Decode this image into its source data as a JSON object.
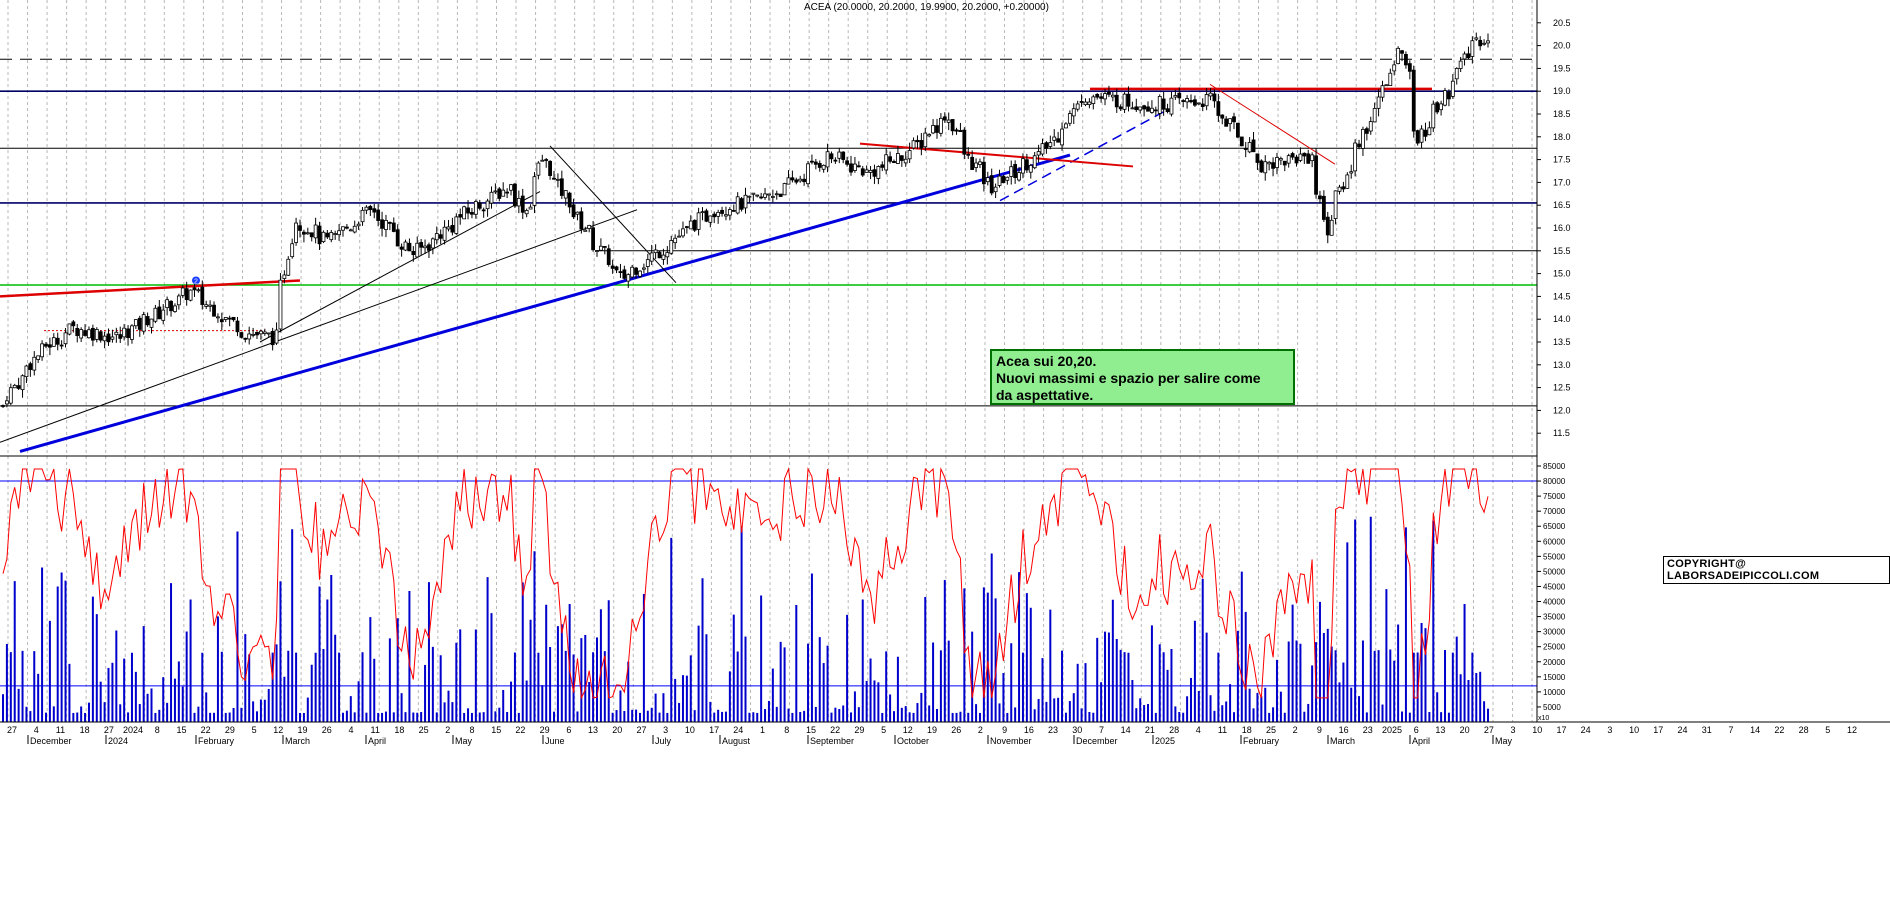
{
  "header": {
    "title": "ACEA (20.0000, 20.2000, 19.9900, 20.2000, +0.20000)"
  },
  "annotation": {
    "line1": "Acea sui 20,20.",
    "line2": "Nuovi massimi e spazio per salire come",
    "line3": "da aspettative."
  },
  "copyright": "COPYRIGHT@ LABORSADEIPICCOLI.COM",
  "colors": {
    "up": "#ffffff",
    "down": "#000000",
    "rsi": "#ff0000",
    "volume": "#0000cc",
    "trend_blue": "#0000dd",
    "support_green": "#00bb00",
    "resistance_red": "#dd0000",
    "annotation_bg": "#90ee90"
  },
  "chart_data": [
    {
      "type": "candlestick",
      "title": "ACEA",
      "ylim": [
        11.0,
        21.0
      ],
      "y_ticks": [
        "11.5",
        "12.0",
        "12.5",
        "13.0",
        "13.5",
        "14.0",
        "14.5",
        "15.0",
        "15.5",
        "16.0",
        "16.5",
        "17.0",
        "17.5",
        "18.0",
        "18.5",
        "19.0",
        "19.5",
        "20.0",
        "20.5"
      ],
      "x_day_ticks": [
        "27",
        "4",
        "11",
        "18",
        "27",
        "2024",
        "8",
        "15",
        "22",
        "29",
        "5",
        "12",
        "19",
        "26",
        "4",
        "11",
        "18",
        "25",
        "2",
        "8",
        "15",
        "22",
        "29",
        "6",
        "13",
        "20",
        "27",
        "3",
        "10",
        "17",
        "24",
        "1",
        "8",
        "15",
        "22",
        "29",
        "5",
        "12",
        "19",
        "26",
        "2",
        "9",
        "16",
        "23",
        "30",
        "7",
        "14",
        "21",
        "28",
        "4",
        "11",
        "18",
        "25",
        "2",
        "9",
        "16",
        "23",
        "2025",
        "6",
        "13",
        "20",
        "27",
        "3",
        "10",
        "17",
        "24",
        "3",
        "10",
        "17",
        "24",
        "31",
        "7",
        "14",
        "22",
        "28",
        "5",
        "12"
      ],
      "x_month_labels": [
        "December",
        "2024",
        "February",
        "March",
        "April",
        "May",
        "June",
        "July",
        "August",
        "September",
        "October",
        "November",
        "December",
        "2025",
        "February",
        "March",
        "April",
        "May"
      ],
      "horizontal_levels": [
        12.1,
        14.75,
        15.5,
        16.55,
        17.75,
        19.0,
        19.7
      ],
      "anchor_points": [
        {
          "date": "2023-11-24",
          "close": 12.1
        },
        {
          "date": "2023-12-08",
          "close": 13.3
        },
        {
          "date": "2023-12-20",
          "close": 13.8
        },
        {
          "date": "2024-01-05",
          "close": 13.6
        },
        {
          "date": "2024-01-31",
          "close": 14.6
        },
        {
          "date": "2024-02-20",
          "close": 13.7
        },
        {
          "date": "2024-03-01",
          "close": 13.6
        },
        {
          "date": "2024-03-08",
          "close": 16.2
        },
        {
          "date": "2024-03-20",
          "close": 15.7
        },
        {
          "date": "2024-04-05",
          "close": 16.4
        },
        {
          "date": "2024-04-20",
          "close": 15.4
        },
        {
          "date": "2024-05-08",
          "close": 16.3
        },
        {
          "date": "2024-05-24",
          "close": 16.9
        },
        {
          "date": "2024-05-30",
          "close": 16.4
        },
        {
          "date": "2024-06-05",
          "close": 17.5
        },
        {
          "date": "2024-06-20",
          "close": 16.0
        },
        {
          "date": "2024-07-03",
          "close": 14.9
        },
        {
          "date": "2024-07-15",
          "close": 15.4
        },
        {
          "date": "2024-08-05",
          "close": 16.4
        },
        {
          "date": "2024-08-20",
          "close": 16.6
        },
        {
          "date": "2024-09-01",
          "close": 16.9
        },
        {
          "date": "2024-09-15",
          "close": 17.6
        },
        {
          "date": "2024-09-30",
          "close": 17.2
        },
        {
          "date": "2024-10-15",
          "close": 17.7
        },
        {
          "date": "2024-10-28",
          "close": 18.5
        },
        {
          "date": "2024-11-05",
          "close": 17.5
        },
        {
          "date": "2024-11-13",
          "close": 16.9
        },
        {
          "date": "2024-12-02",
          "close": 17.7
        },
        {
          "date": "2024-12-16",
          "close": 18.9
        },
        {
          "date": "2025-01-10",
          "close": 18.7
        },
        {
          "date": "2025-01-30",
          "close": 18.8
        },
        {
          "date": "2025-02-18",
          "close": 17.4
        },
        {
          "date": "2025-03-07",
          "close": 17.6
        },
        {
          "date": "2025-03-13",
          "close": 16.0
        },
        {
          "date": "2025-03-24",
          "close": 17.8
        },
        {
          "date": "2025-04-02",
          "close": 19.0
        },
        {
          "date": "2025-04-09",
          "close": 20.0
        },
        {
          "date": "2025-04-15",
          "close": 17.9
        },
        {
          "date": "2025-04-25",
          "close": 19.0
        },
        {
          "date": "2025-05-05",
          "close": 20.1
        },
        {
          "date": "2025-05-09",
          "close": 20.2
        }
      ]
    },
    {
      "type": "bar+line",
      "title": "Volume / oscillator",
      "ylim": [
        0,
        85000
      ],
      "y_ticks": [
        "5000",
        "10000",
        "15000",
        "20000",
        "25000",
        "30000",
        "35000",
        "40000",
        "45000",
        "50000",
        "55000",
        "60000",
        "65000",
        "70000",
        "75000",
        "80000",
        "85000"
      ],
      "reference_levels": [
        80000,
        12000
      ],
      "axis_unit": "x10"
    }
  ]
}
